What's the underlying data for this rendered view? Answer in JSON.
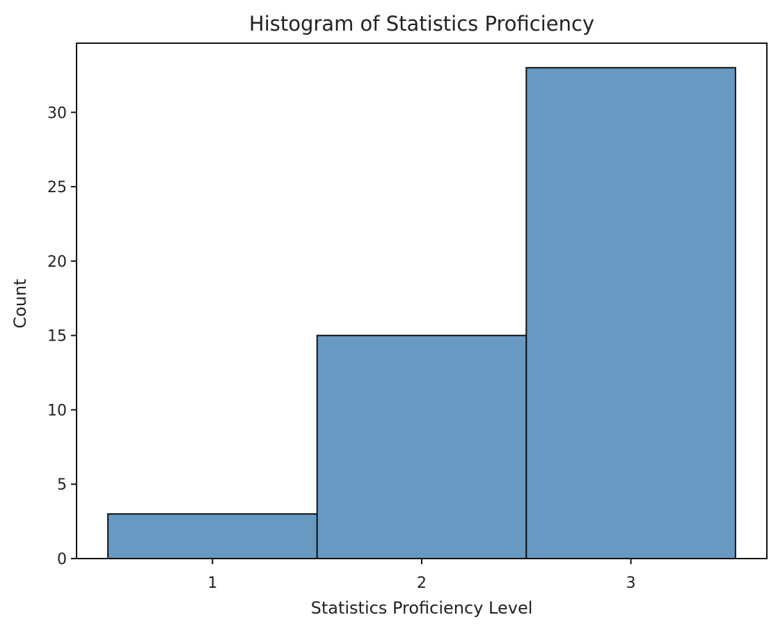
{
  "chart_data": {
    "type": "bar",
    "title": "Histogram of Statistics Proficiency",
    "xlabel": "Statistics Proficiency Level",
    "ylabel": "Count",
    "categories": [
      "1",
      "2",
      "3"
    ],
    "bins": [
      {
        "start": 0.5,
        "end": 1.5,
        "count": 3
      },
      {
        "start": 1.5,
        "end": 2.5,
        "count": 15
      },
      {
        "start": 2.5,
        "end": 3.5,
        "count": 33
      }
    ],
    "values": [
      3,
      15,
      33
    ],
    "xlim": [
      0.35,
      3.65
    ],
    "ylim": [
      0,
      34.65
    ],
    "xticks": [
      1,
      2,
      3
    ],
    "yticks": [
      0,
      5,
      10,
      15,
      20,
      25,
      30
    ],
    "grid": false,
    "legend": "none",
    "colors": {
      "bar_fill": "#6899c3",
      "bar_edge": "#111111",
      "axis": "#111111",
      "text": "#222222"
    }
  }
}
